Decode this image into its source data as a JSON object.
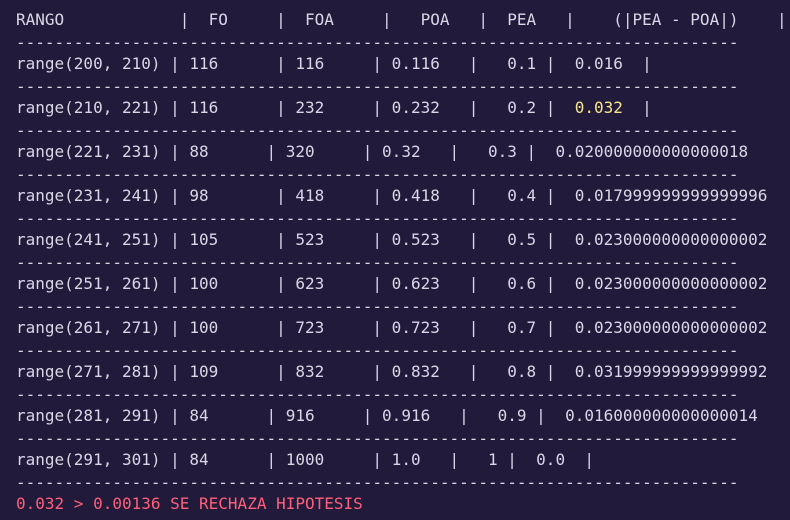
{
  "terminal": {
    "header": "RANGO            |  FO     |  FOA     |   POA   |  PEA   |    (|PEA - POA|)    |",
    "separator": "---------------------------------------------------------------------------",
    "rows": [
      {
        "pre": "range(200, 210) | 116      | 116     | 0.116   |   0.1 |  ",
        "val": "0.016",
        "post": "  |"
      },
      {
        "pre": "range(210, 221) | 116      | 232     | 0.232   |   0.2 |  ",
        "val": "0.032",
        "post": "  |"
      },
      {
        "pre": "range(221, 231) | 88      | 320     | 0.32   |   0.3 |  ",
        "val": "0.020000000000000018",
        "post": ""
      },
      {
        "pre": "range(231, 241) | 98       | 418     | 0.418   |   0.4 |  ",
        "val": "0.017999999999999996",
        "post": ""
      },
      {
        "pre": "range(241, 251) | 105      | 523     | 0.523   |   0.5 |  ",
        "val": "0.023000000000000002",
        "post": ""
      },
      {
        "pre": "range(251, 261) | 100      | 623     | 0.623   |   0.6 |  ",
        "val": "0.023000000000000002",
        "post": ""
      },
      {
        "pre": "range(261, 271) | 100      | 723     | 0.723   |   0.7 |  ",
        "val": "0.023000000000000002",
        "post": ""
      },
      {
        "pre": "range(271, 281) | 109      | 832     | 0.832   |   0.8 |  ",
        "val": "0.031999999999999992",
        "post": ""
      },
      {
        "pre": "range(281, 291) | 84      | 916     | 0.916   |   0.9 |  ",
        "val": "0.016000000000000014",
        "post": ""
      },
      {
        "pre": "range(291, 301) | 84      | 1000     | 1.0   |   1 |  ",
        "val": "0.0",
        "post": "  |"
      }
    ],
    "result": "0.032 > 0.00136 SE RECHAZA HIPOTESIS"
  }
}
